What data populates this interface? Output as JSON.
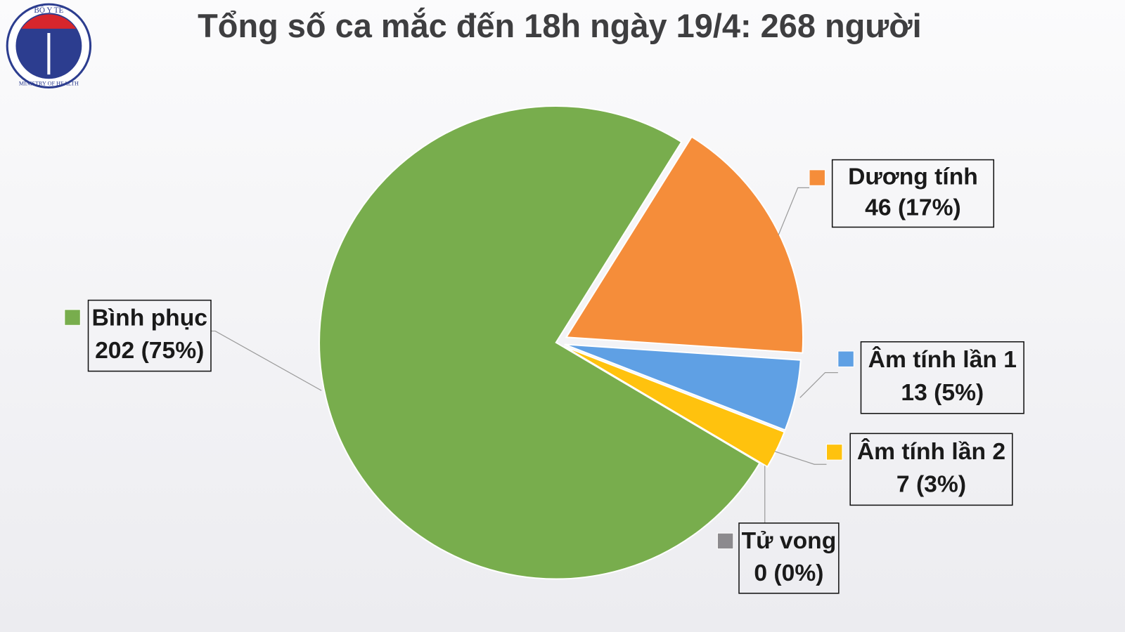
{
  "logo": {
    "top": "BỘ Y TẾ",
    "bottom": "MINISTRY OF HEALTH"
  },
  "chart_data": {
    "type": "pie",
    "title": "Tổng số ca mắc đến 18h ngày 19/4: 268 người",
    "categories": [
      "Dương tính",
      "Âm tính lần 1",
      "Âm tính lần 2",
      "Tử vong",
      "Bình phục"
    ],
    "values": [
      46,
      13,
      7,
      0,
      202
    ],
    "value_labels": [
      "46 (17%)",
      "13 (5%)",
      "7 (3%)",
      "0 (0%)",
      "202 (75%)"
    ],
    "colors": [
      "#f58d3a",
      "#5fa0e4",
      "#ffc20e",
      "#8c8a8e",
      "#78ad4d"
    ]
  }
}
